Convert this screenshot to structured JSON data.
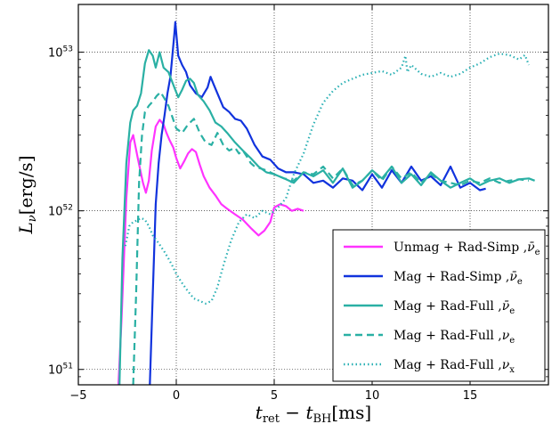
{
  "chart_data": {
    "type": "line",
    "title": "",
    "xlabel": "t_ret − t_BH [ms]",
    "ylabel": "L_ν [erg/s]",
    "xlim": [
      -5,
      19
    ],
    "ylim": [
      8e+50,
      2e+53
    ],
    "yscale": "log",
    "grid": true,
    "legend_position": "lower-right",
    "xticks": [
      -5,
      0,
      5,
      10,
      15
    ],
    "yticks": [
      {
        "value": 1e+51,
        "label": "10^51"
      },
      {
        "value": 1e+52,
        "label": "10^52"
      },
      {
        "value": 1e+53,
        "label": "10^53"
      }
    ],
    "series": [
      {
        "name": "Unmag + Rad-Simp , ν̄e",
        "color": "#ff33ff",
        "dash": "solid",
        "x": [
          -3,
          -2.8,
          -2.55,
          -2.35,
          -2.2,
          -1.95,
          -1.7,
          -1.55,
          -1.4,
          -1.25,
          -1.05,
          -0.85,
          -0.65,
          -0.5,
          -0.35,
          -0.15,
          0,
          0.2,
          0.4,
          0.6,
          0.8,
          1.0,
          1.2,
          1.4,
          1.7,
          2.0,
          2.3,
          2.6,
          3.0,
          3.4,
          3.8,
          4.2,
          4.5,
          4.8,
          5.0,
          5.3,
          5.6,
          5.9,
          6.2,
          6.5
        ],
        "y": [
          6e+50,
          2e+51,
          1.2e+52,
          2.7e+52,
          3e+52,
          2.1e+52,
          1.5e+52,
          1.3e+52,
          1.55e+52,
          2.4e+52,
          3.4e+52,
          3.75e+52,
          3.5e+52,
          3.1e+52,
          2.8e+52,
          2.5e+52,
          2.15e+52,
          1.85e+52,
          2.05e+52,
          2.3e+52,
          2.45e+52,
          2.35e+52,
          1.95e+52,
          1.65e+52,
          1.4e+52,
          1.25e+52,
          1.1e+52,
          1.03e+52,
          9.5e+51,
          8.8e+51,
          7.8e+51,
          7e+51,
          7.5e+51,
          8.5e+51,
          1.05e+52,
          1.1e+52,
          1.07e+52,
          1e+52,
          1.03e+52,
          1e+52
        ]
      },
      {
        "name": "Mag + Rad-Simp , ν̄e",
        "color": "#1133dd",
        "dash": "solid",
        "x": [
          -1.35,
          -1.2,
          -1.05,
          -0.9,
          -0.75,
          -0.6,
          -0.45,
          -0.3,
          -0.2,
          -0.1,
          -0.05,
          0.1,
          0.3,
          0.5,
          0.7,
          1.0,
          1.3,
          1.6,
          1.75,
          1.9,
          2.1,
          2.4,
          2.7,
          3.0,
          3.3,
          3.6,
          4.0,
          4.4,
          4.8,
          5.2,
          5.6,
          6.0,
          6.5,
          7.0,
          7.5,
          8.0,
          8.5,
          9.0,
          9.5,
          10.0,
          10.5,
          11.0,
          11.5,
          12.0,
          12.5,
          13.0,
          13.5,
          14.0,
          14.5,
          15.0,
          15.5,
          15.8
        ],
        "y": [
          8e+50,
          3e+51,
          1.1e+52,
          2e+52,
          3e+52,
          4e+52,
          5.5e+52,
          7e+52,
          9.5e+52,
          1.3e+53,
          1.55e+53,
          9.5e+52,
          8.3e+52,
          7.5e+52,
          6.2e+52,
          5.5e+52,
          5.2e+52,
          6e+52,
          7e+52,
          6.3e+52,
          5.5e+52,
          4.5e+52,
          4.2e+52,
          3.8e+52,
          3.7e+52,
          3.3e+52,
          2.6e+52,
          2.2e+52,
          2.1e+52,
          1.85e+52,
          1.75e+52,
          1.75e+52,
          1.7e+52,
          1.5e+52,
          1.55e+52,
          1.4e+52,
          1.6e+52,
          1.55e+52,
          1.35e+52,
          1.7e+52,
          1.4e+52,
          1.8e+52,
          1.5e+52,
          1.9e+52,
          1.55e+52,
          1.65e+52,
          1.45e+52,
          1.9e+52,
          1.4e+52,
          1.5e+52,
          1.35e+52,
          1.38e+52
        ]
      },
      {
        "name": "Mag + Rad-Full , ν̄e",
        "color": "#2ab0a4",
        "dash": "solid",
        "x": [
          -2.9,
          -2.75,
          -2.55,
          -2.35,
          -2.2,
          -2.0,
          -1.8,
          -1.6,
          -1.4,
          -1.2,
          -1.05,
          -0.85,
          -0.65,
          -0.4,
          -0.1,
          0.1,
          0.3,
          0.5,
          0.7,
          0.9,
          1.1,
          1.4,
          1.7,
          2.0,
          2.3,
          2.6,
          3.0,
          3.4,
          3.8,
          4.2,
          4.6,
          5.0,
          5.5,
          6.0,
          6.5,
          7.0,
          7.5,
          8.0,
          8.5,
          9.0,
          9.5,
          10.0,
          10.5,
          11.0,
          11.5,
          12.0,
          12.5,
          13.0,
          13.5,
          14.0,
          14.5,
          15.0,
          15.5,
          16.0,
          16.5,
          17.0,
          17.5,
          18.0,
          18.3
        ],
        "y": [
          8e+50,
          5e+51,
          2e+52,
          3.6e+52,
          4.3e+52,
          4.6e+52,
          5.5e+52,
          8.5e+52,
          1.03e+53,
          9.5e+52,
          8e+52,
          1e+53,
          8e+52,
          7.5e+52,
          6e+52,
          5.2e+52,
          5.8e+52,
          6.6e+52,
          6.8e+52,
          6.4e+52,
          5.4e+52,
          4.9e+52,
          4.3e+52,
          3.6e+52,
          3.4e+52,
          3.1e+52,
          2.7e+52,
          2.4e+52,
          2.15e+52,
          1.9e+52,
          1.75e+52,
          1.7e+52,
          1.6e+52,
          1.5e+52,
          1.75e+52,
          1.65e+52,
          1.8e+52,
          1.5e+52,
          1.85e+52,
          1.4e+52,
          1.55e+52,
          1.8e+52,
          1.6e+52,
          1.9e+52,
          1.5e+52,
          1.7e+52,
          1.45e+52,
          1.75e+52,
          1.55e+52,
          1.4e+52,
          1.5e+52,
          1.6e+52,
          1.45e+52,
          1.55e+52,
          1.6e+52,
          1.5e+52,
          1.58e+52,
          1.6e+52,
          1.55e+52
        ]
      },
      {
        "name": "Mag + Rad-Full , νe",
        "color": "#2ab0a4",
        "dash": "dashed",
        "x": [
          -2.2,
          -2.05,
          -1.9,
          -1.75,
          -1.6,
          -1.4,
          -1.2,
          -1.0,
          -0.8,
          -0.6,
          -0.4,
          -0.2,
          0.0,
          0.3,
          0.6,
          0.9,
          1.2,
          1.5,
          1.8,
          2.1,
          2.4,
          2.7,
          3.0,
          3.2,
          3.4,
          3.6,
          3.8,
          4.0,
          4.3,
          4.6,
          5.0,
          5.5,
          6.0,
          6.5,
          7.0,
          7.5,
          8.0,
          8.5,
          9.0,
          9.5,
          10.0,
          10.5,
          11.0,
          11.5,
          12.0,
          12.5,
          13.0,
          13.5,
          14.0,
          14.5,
          15.0,
          15.5,
          16.0,
          16.5,
          17.0,
          17.5,
          18.0
        ],
        "y": [
          8e+50,
          3e+51,
          1.5e+52,
          3e+52,
          4.2e+52,
          4.6e+52,
          4.9e+52,
          5.3e+52,
          5.6e+52,
          5.1e+52,
          4.6e+52,
          3.9e+52,
          3.3e+52,
          3.1e+52,
          3.5e+52,
          3.8e+52,
          3.1e+52,
          2.7e+52,
          2.6e+52,
          3.1e+52,
          2.6e+52,
          2.4e+52,
          2.5e+52,
          2.3e+52,
          2.4e+52,
          2.2e+52,
          2e+52,
          1.9e+52,
          1.85e+52,
          1.8e+52,
          1.7e+52,
          1.6e+52,
          1.55e+52,
          1.75e+52,
          1.7e+52,
          1.9e+52,
          1.6e+52,
          1.85e+52,
          1.45e+52,
          1.55e+52,
          1.8e+52,
          1.55e+52,
          1.9e+52,
          1.6e+52,
          1.75e+52,
          1.5e+52,
          1.7e+52,
          1.55e+52,
          1.5e+52,
          1.45e+52,
          1.55e+52,
          1.5e+52,
          1.6e+52,
          1.5e+52,
          1.55e+52,
          1.58e+52,
          1.55e+52
        ]
      },
      {
        "name": "Mag + Rad-Full , νx",
        "color": "#2ab0b4",
        "dash": "dotted",
        "x": [
          -2.6,
          -2.4,
          -2.2,
          -2.0,
          -1.8,
          -1.6,
          -1.4,
          -1.2,
          -1.0,
          -0.8,
          -0.6,
          -0.4,
          -0.2,
          0.0,
          0.3,
          0.6,
          0.9,
          1.2,
          1.5,
          1.8,
          2.1,
          2.4,
          2.8,
          3.2,
          3.6,
          4.0,
          4.4,
          4.8,
          5.2,
          5.6,
          6.0,
          6.5,
          7.0,
          7.5,
          8.0,
          8.5,
          9.0,
          9.5,
          10.0,
          10.5,
          11.0,
          11.5,
          11.7,
          11.8,
          12.0,
          12.5,
          13.0,
          13.5,
          14.0,
          14.5,
          15.0,
          15.5,
          16.0,
          16.5,
          17.0,
          17.5,
          17.8,
          18.0
        ],
        "y": [
          6e+51,
          8e+51,
          8.5e+51,
          8.7e+51,
          9e+51,
          8.8e+51,
          8e+51,
          7e+51,
          6.5e+51,
          6e+51,
          5.5e+51,
          5e+51,
          4.5e+51,
          4e+51,
          3.5e+51,
          3.1e+51,
          2.8e+51,
          2.7e+51,
          2.6e+51,
          2.7e+51,
          3.3e+51,
          4.5e+51,
          6.5e+51,
          8.5e+51,
          9.5e+51,
          9e+51,
          1e+52,
          9.5e+51,
          1.05e+52,
          1.2e+52,
          1.7e+52,
          2.3e+52,
          3.5e+52,
          4.8e+52,
          5.7e+52,
          6.4e+52,
          6.8e+52,
          7.2e+52,
          7.4e+52,
          7.6e+52,
          7.2e+52,
          8e+52,
          9.5e+52,
          7.5e+52,
          8.3e+52,
          7.3e+52,
          7e+52,
          7.4e+52,
          7e+52,
          7.3e+52,
          8e+52,
          8.5e+52,
          9.3e+52,
          9.8e+52,
          9.6e+52,
          9e+52,
          9.6e+52,
          8.3e+52
        ]
      }
    ]
  }
}
